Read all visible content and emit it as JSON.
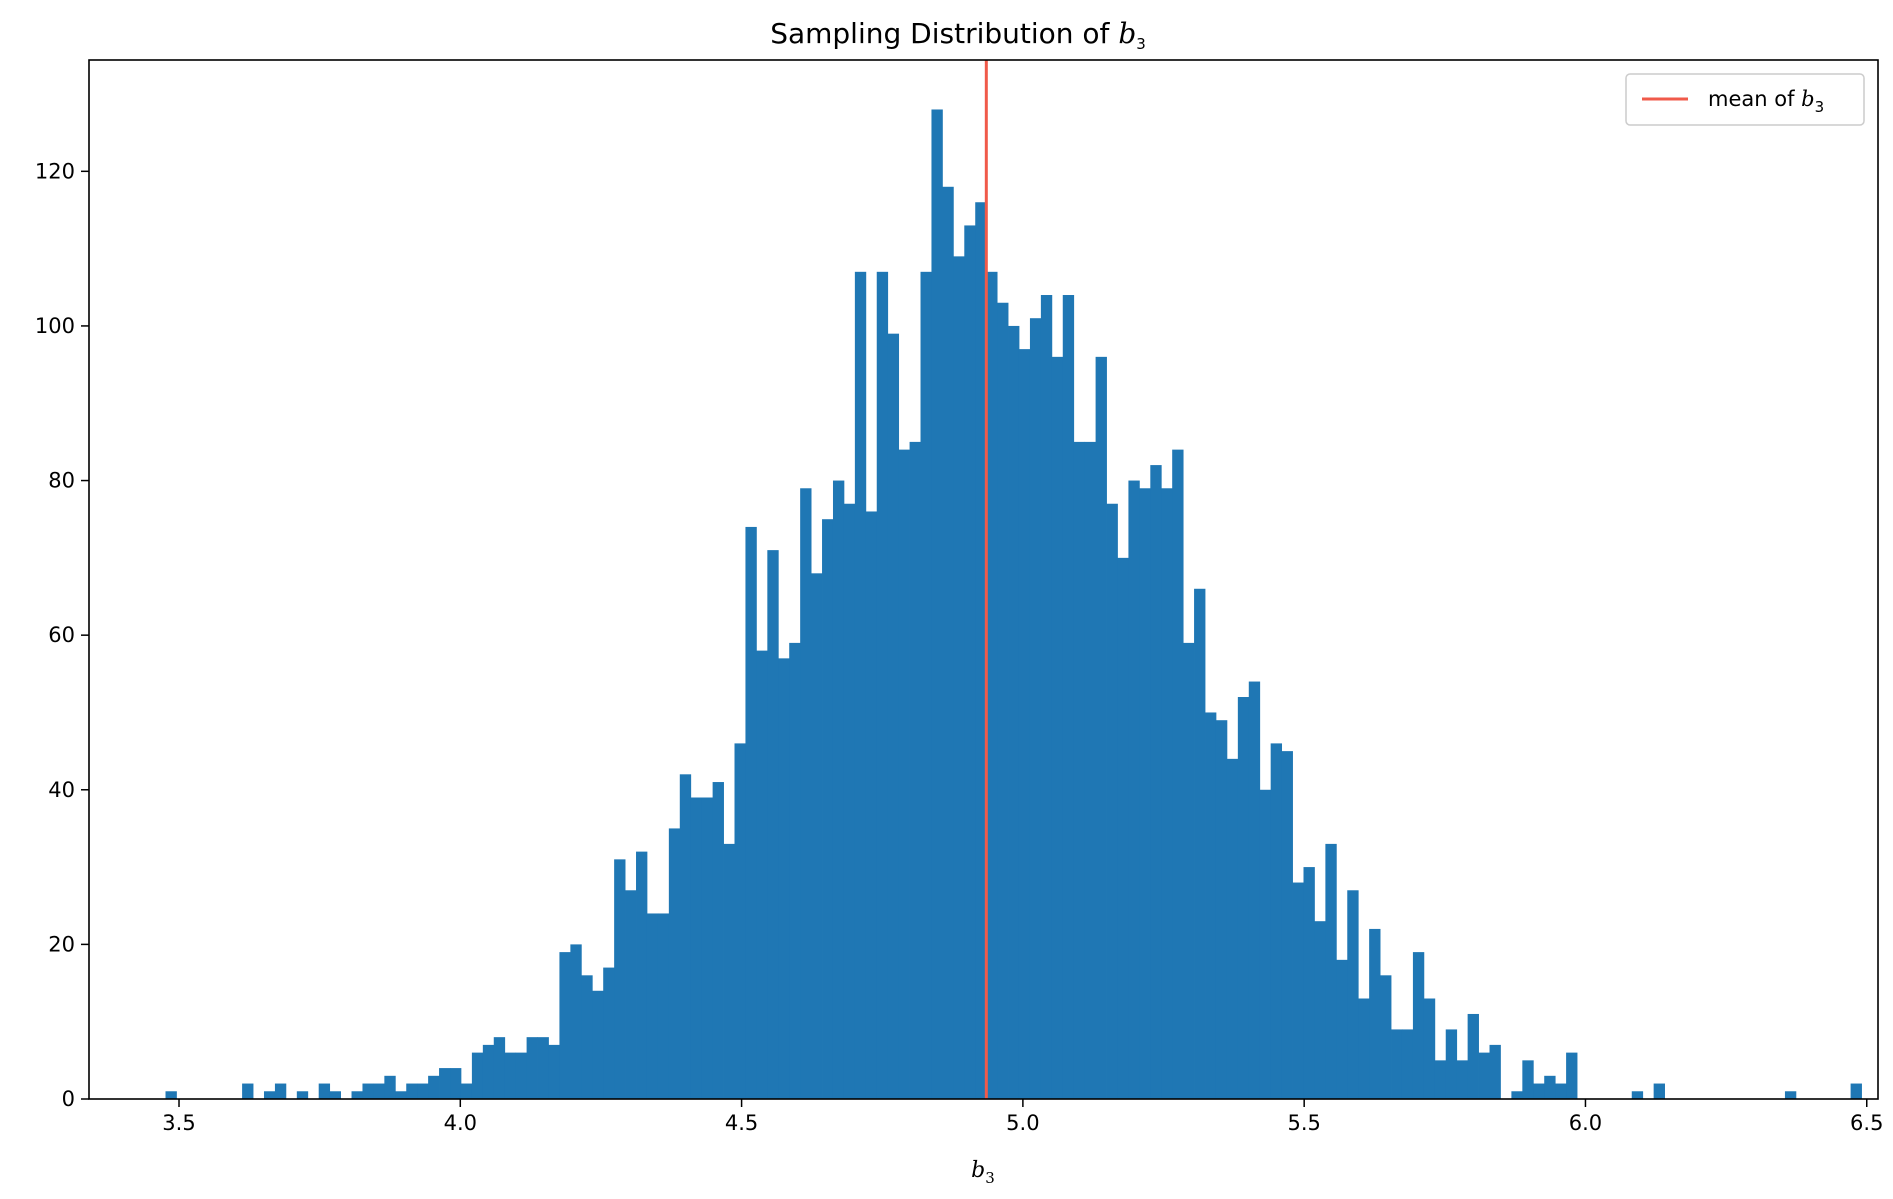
{
  "chart_data": {
    "type": "bar",
    "title": "Sampling Distribution of",
    "title_symbol": "b",
    "title_subscript": "3",
    "xlabel_symbol": "b",
    "xlabel_subscript": "3",
    "ylabel": "",
    "xlim": [
      3.34,
      6.52
    ],
    "ylim": [
      0,
      134.4
    ],
    "xticks": [
      3.5,
      4.0,
      4.5,
      5.0,
      5.5,
      6.0,
      6.5
    ],
    "xtick_labels": [
      "3.5",
      "4.0",
      "4.5",
      "5.0",
      "5.5",
      "6.0",
      "6.5"
    ],
    "yticks": [
      0,
      20,
      40,
      60,
      80,
      100,
      120
    ],
    "ytick_labels": [
      "0",
      "20",
      "40",
      "60",
      "80",
      "100",
      "120"
    ],
    "grid": false,
    "bar_color": "#1f77b4",
    "bin_start": 3.476,
    "bin_width": 0.01945,
    "counts": [
      1,
      0,
      0,
      0,
      0,
      0,
      0,
      2,
      0,
      1,
      2,
      0,
      1,
      0,
      2,
      1,
      0,
      1,
      2,
      2,
      3,
      1,
      2,
      2,
      3,
      4,
      4,
      2,
      6,
      7,
      8,
      6,
      6,
      8,
      8,
      7,
      19,
      20,
      16,
      14,
      17,
      31,
      27,
      32,
      24,
      24,
      35,
      42,
      39,
      39,
      41,
      33,
      46,
      74,
      58,
      71,
      57,
      59,
      79,
      68,
      75,
      80,
      77,
      107,
      76,
      107,
      99,
      84,
      85,
      107,
      128,
      118,
      109,
      113,
      116,
      107,
      103,
      100,
      97,
      101,
      104,
      96,
      104,
      85,
      85,
      96,
      77,
      70,
      80,
      79,
      82,
      79,
      84,
      59,
      66,
      50,
      49,
      44,
      52,
      54,
      40,
      46,
      45,
      28,
      30,
      23,
      33,
      18,
      27,
      13,
      22,
      16,
      9,
      9,
      19,
      13,
      5,
      9,
      5,
      11,
      6,
      7,
      0,
      1,
      5,
      2,
      3,
      2,
      6,
      0,
      0,
      0,
      0,
      0,
      1,
      0,
      2,
      0,
      0,
      0,
      0,
      0,
      0,
      0,
      0,
      0,
      0,
      0,
      1,
      0,
      0,
      0,
      0,
      0,
      2
    ],
    "mean_line": {
      "x": 4.935,
      "color": "#f05a4a"
    },
    "legend": {
      "placement": "upper-right",
      "label": "mean of",
      "symbol": "b",
      "subscript": "3"
    }
  }
}
